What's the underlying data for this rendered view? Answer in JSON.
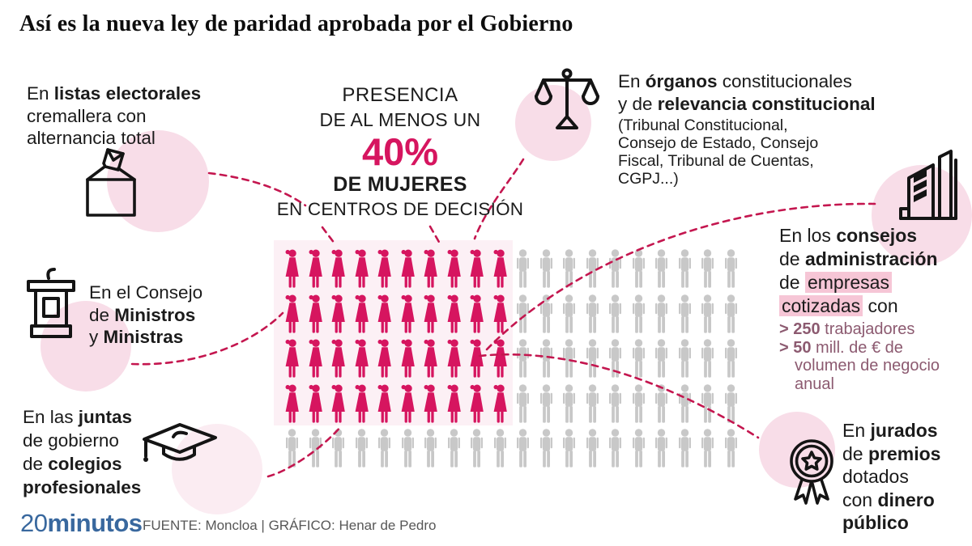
{
  "title": "Así es la nueva ley de paridad aprobada por el Gobierno",
  "center": {
    "l1": "PRESENCIA",
    "l2": "DE AL MENOS UN",
    "pct": "40%",
    "l3": "DE MUJERES",
    "l4": "EN CENTROS DE DECISIÓN"
  },
  "items": {
    "electoral": {
      "l1_pre": "En ",
      "l1_b": "listas electorales",
      "l2": "cremallera con",
      "l3": "alternancia total"
    },
    "ministros": {
      "l1": "En el Consejo",
      "l2_pre": "de ",
      "l2_b": "Ministros",
      "l3_pre": "y ",
      "l3_b": "Ministras"
    },
    "juntas": {
      "l1_pre": "En las ",
      "l1_b": "juntas",
      "l2": "de gobierno",
      "l3_pre": "de ",
      "l3_b": "colegios",
      "l4_b": "profesionales"
    },
    "organos": {
      "l1_pre": "En ",
      "l1_b": "órganos",
      "l1_post": " constitucionales",
      "l2_pre": "y de ",
      "l2_b": "relevancia constitucional",
      "p1": "(Tribunal Constitucional,",
      "p2": "Consejo de Estado, Consejo",
      "p3": "Fiscal, Tribunal de Cuentas,",
      "p4": "CGPJ...)"
    },
    "consejos": {
      "l1_pre": "En los ",
      "l1_b": "consejos",
      "l2_pre": "de ",
      "l2_b": "administración",
      "l3_pre": "de ",
      "l3_hl": "empresas",
      "l4_hl": "cotizadas",
      "l4_post": " con",
      "b1_sym": "> ",
      "b1_num": "250",
      "b1_text": " trabajadores",
      "b2_sym": "> ",
      "b2_num": "50",
      "b2_text": " mill. de € de",
      "b2_l2": "volumen de negocio",
      "b2_l3": "anual"
    },
    "jurados": {
      "l1_pre": "En ",
      "l1_b": "jurados",
      "l2_pre": "de ",
      "l2_b": "premios",
      "l3": "dotados",
      "l4_pre": "con ",
      "l4_b": "dinero",
      "l5_b": "público"
    }
  },
  "footer": {
    "logo_20": "20",
    "logo_minutos": "minutos",
    "source": "FUENTE: Moncloa  |  GRÁFICO: Henar de Pedro"
  },
  "icons": [
    "ballot-box-icon",
    "podium-icon",
    "graduation-cap-icon",
    "scales-icon",
    "buildings-icon",
    "award-medal-icon"
  ],
  "colors": {
    "accent_pink": "#d6155f",
    "dashed_line": "#c4164f",
    "men_gray": "#c8c8c8",
    "pale_circle": "#f8dde8",
    "highlight": "#f6c6d6",
    "bullet_mauve": "#8c5a70",
    "logo_blue": "#39689e"
  },
  "chart_data": {
    "type": "pictogram",
    "title": "Presencia de al menos un 40% de mujeres en centros de decisión",
    "total_figures": 100,
    "women": 40,
    "men": 60,
    "percent_women": 40,
    "rows": [
      {
        "women": 10,
        "men": 10
      },
      {
        "women": 10,
        "men": 10
      },
      {
        "women": 10,
        "men": 10
      },
      {
        "women": 10,
        "men": 10
      },
      {
        "women": 0,
        "men": 20
      }
    ],
    "women_per_row": [
      10,
      10,
      10,
      10,
      0
    ],
    "women_color": "#d6155f",
    "men_color": "#c8c8c8",
    "legend": "figuras rosas = mujeres, figuras grises = hombres"
  }
}
